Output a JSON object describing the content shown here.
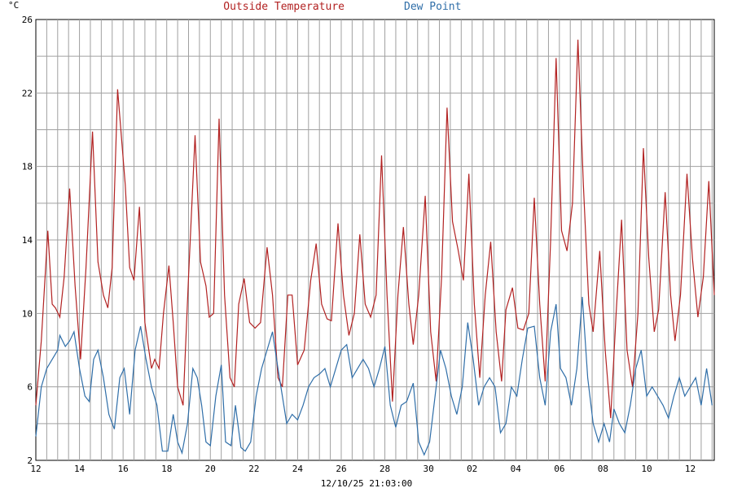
{
  "chart_data": {
    "type": "line",
    "title_parts": [
      {
        "text": "Outside Temperature",
        "color": "#b22222"
      },
      {
        "text": "Dew Point",
        "color": "#2f6ea8"
      }
    ],
    "ylabel": "°C",
    "xlabel": "12/10/25 21:03:00",
    "ylim": [
      2,
      26
    ],
    "yticks": [
      2,
      6,
      10,
      14,
      18,
      22,
      26
    ],
    "xlim": [
      0,
      31.1
    ],
    "xticks": [
      {
        "x": 0,
        "label": "12"
      },
      {
        "x": 2,
        "label": "14"
      },
      {
        "x": 4,
        "label": "16"
      },
      {
        "x": 6,
        "label": "18"
      },
      {
        "x": 8,
        "label": "20"
      },
      {
        "x": 10,
        "label": "22"
      },
      {
        "x": 12,
        "label": "24"
      },
      {
        "x": 14,
        "label": "26"
      },
      {
        "x": 16,
        "label": "28"
      },
      {
        "x": 18,
        "label": "30"
      },
      {
        "x": 20,
        "label": "02"
      },
      {
        "x": 22,
        "label": "04"
      },
      {
        "x": 24,
        "label": "06"
      },
      {
        "x": 26,
        "label": "08"
      },
      {
        "x": 28,
        "label": "10"
      },
      {
        "x": 30,
        "label": "12"
      }
    ],
    "grid": true,
    "series": [
      {
        "name": "Outside Temperature",
        "color": "#b22222",
        "points": [
          [
            0.0,
            5.0
          ],
          [
            0.25,
            8.5
          ],
          [
            0.55,
            14.5
          ],
          [
            0.75,
            10.5
          ],
          [
            0.9,
            10.3
          ],
          [
            1.1,
            9.8
          ],
          [
            1.3,
            12.0
          ],
          [
            1.55,
            16.8
          ],
          [
            1.8,
            11.5
          ],
          [
            2.05,
            7.5
          ],
          [
            2.3,
            12.5
          ],
          [
            2.6,
            19.9
          ],
          [
            2.85,
            12.8
          ],
          [
            3.1,
            11.0
          ],
          [
            3.3,
            10.3
          ],
          [
            3.5,
            12.5
          ],
          [
            3.75,
            22.2
          ],
          [
            4.1,
            17.0
          ],
          [
            4.3,
            12.5
          ],
          [
            4.5,
            11.8
          ],
          [
            4.75,
            15.8
          ],
          [
            5.0,
            9.5
          ],
          [
            5.3,
            7.0
          ],
          [
            5.45,
            7.5
          ],
          [
            5.65,
            7.0
          ],
          [
            5.85,
            10.0
          ],
          [
            6.1,
            12.6
          ],
          [
            6.3,
            9.5
          ],
          [
            6.5,
            6.0
          ],
          [
            6.75,
            5.0
          ],
          [
            7.0,
            12.0
          ],
          [
            7.3,
            19.7
          ],
          [
            7.55,
            12.8
          ],
          [
            7.8,
            11.5
          ],
          [
            7.95,
            9.8
          ],
          [
            8.15,
            10.0
          ],
          [
            8.4,
            20.6
          ],
          [
            8.65,
            11.0
          ],
          [
            8.9,
            6.5
          ],
          [
            9.1,
            6.0
          ],
          [
            9.3,
            10.5
          ],
          [
            9.55,
            11.9
          ],
          [
            9.8,
            9.5
          ],
          [
            10.05,
            9.2
          ],
          [
            10.3,
            9.5
          ],
          [
            10.6,
            13.6
          ],
          [
            10.85,
            11.0
          ],
          [
            11.1,
            6.5
          ],
          [
            11.3,
            6.0
          ],
          [
            11.55,
            11.0
          ],
          [
            11.75,
            11.0
          ],
          [
            12.0,
            7.2
          ],
          [
            12.3,
            8.0
          ],
          [
            12.6,
            11.8
          ],
          [
            12.85,
            13.8
          ],
          [
            13.1,
            10.5
          ],
          [
            13.35,
            9.7
          ],
          [
            13.55,
            9.6
          ],
          [
            13.85,
            14.9
          ],
          [
            14.1,
            11.0
          ],
          [
            14.35,
            8.8
          ],
          [
            14.6,
            10.0
          ],
          [
            14.85,
            14.3
          ],
          [
            15.1,
            10.5
          ],
          [
            15.35,
            9.8
          ],
          [
            15.6,
            11.0
          ],
          [
            15.85,
            18.6
          ],
          [
            16.1,
            11.0
          ],
          [
            16.35,
            5.2
          ],
          [
            16.6,
            11.0
          ],
          [
            16.85,
            14.7
          ],
          [
            17.1,
            10.5
          ],
          [
            17.3,
            8.3
          ],
          [
            17.55,
            11.0
          ],
          [
            17.85,
            16.4
          ],
          [
            18.1,
            9.0
          ],
          [
            18.35,
            6.3
          ],
          [
            18.6,
            12.0
          ],
          [
            18.85,
            21.2
          ],
          [
            19.1,
            15.0
          ],
          [
            19.35,
            13.5
          ],
          [
            19.6,
            11.8
          ],
          [
            19.85,
            17.6
          ],
          [
            20.1,
            10.5
          ],
          [
            20.35,
            6.5
          ],
          [
            20.6,
            11.0
          ],
          [
            20.85,
            13.9
          ],
          [
            21.1,
            9.0
          ],
          [
            21.35,
            6.3
          ],
          [
            21.55,
            10.2
          ],
          [
            21.85,
            11.4
          ],
          [
            22.1,
            9.2
          ],
          [
            22.35,
            9.1
          ],
          [
            22.6,
            10.0
          ],
          [
            22.85,
            16.3
          ],
          [
            23.1,
            10.5
          ],
          [
            23.35,
            6.3
          ],
          [
            23.6,
            14.0
          ],
          [
            23.85,
            23.9
          ],
          [
            24.1,
            14.5
          ],
          [
            24.35,
            13.4
          ],
          [
            24.6,
            16.0
          ],
          [
            24.85,
            24.9
          ],
          [
            25.1,
            17.0
          ],
          [
            25.35,
            10.5
          ],
          [
            25.55,
            9.0
          ],
          [
            25.85,
            13.4
          ],
          [
            26.1,
            8.0
          ],
          [
            26.35,
            4.3
          ],
          [
            26.6,
            10.0
          ],
          [
            26.85,
            15.1
          ],
          [
            27.1,
            8.0
          ],
          [
            27.35,
            6.0
          ],
          [
            27.6,
            10.0
          ],
          [
            27.85,
            19.0
          ],
          [
            28.1,
            13.0
          ],
          [
            28.35,
            9.0
          ],
          [
            28.55,
            10.2
          ],
          [
            28.85,
            16.6
          ],
          [
            29.1,
            11.0
          ],
          [
            29.3,
            8.5
          ],
          [
            29.55,
            11.0
          ],
          [
            29.85,
            17.6
          ],
          [
            30.1,
            13.0
          ],
          [
            30.35,
            9.8
          ],
          [
            30.6,
            12.0
          ],
          [
            30.85,
            17.2
          ],
          [
            31.1,
            11.0
          ],
          [
            31.3,
            6.5
          ],
          [
            31.55,
            12.0
          ],
          [
            31.8,
            15.2
          ],
          [
            32.0,
            11.0
          ],
          [
            32.2,
            9.5
          ]
        ]
      },
      {
        "name": "Dew Point",
        "color": "#2f6ea8",
        "points": [
          [
            0.0,
            3.3
          ],
          [
            0.25,
            6.0
          ],
          [
            0.5,
            7.0
          ],
          [
            0.75,
            7.5
          ],
          [
            1.0,
            8.0
          ],
          [
            1.1,
            8.8
          ],
          [
            1.35,
            8.2
          ],
          [
            1.55,
            8.5
          ],
          [
            1.75,
            9.0
          ],
          [
            2.0,
            7.0
          ],
          [
            2.25,
            5.5
          ],
          [
            2.45,
            5.2
          ],
          [
            2.65,
            7.5
          ],
          [
            2.85,
            8.0
          ],
          [
            3.1,
            6.5
          ],
          [
            3.35,
            4.5
          ],
          [
            3.6,
            3.7
          ],
          [
            3.85,
            6.5
          ],
          [
            4.05,
            7.0
          ],
          [
            4.3,
            4.5
          ],
          [
            4.55,
            8.0
          ],
          [
            4.8,
            9.3
          ],
          [
            5.05,
            7.5
          ],
          [
            5.3,
            6.0
          ],
          [
            5.55,
            5.0
          ],
          [
            5.8,
            2.5
          ],
          [
            6.05,
            2.5
          ],
          [
            6.3,
            4.5
          ],
          [
            6.5,
            3.0
          ],
          [
            6.7,
            2.4
          ],
          [
            6.95,
            4.0
          ],
          [
            7.2,
            7.0
          ],
          [
            7.4,
            6.5
          ],
          [
            7.6,
            5.0
          ],
          [
            7.8,
            3.0
          ],
          [
            8.0,
            2.8
          ],
          [
            8.25,
            5.5
          ],
          [
            8.5,
            7.2
          ],
          [
            8.7,
            3.0
          ],
          [
            8.95,
            2.8
          ],
          [
            9.15,
            5.0
          ],
          [
            9.4,
            2.7
          ],
          [
            9.6,
            2.5
          ],
          [
            9.85,
            3.0
          ],
          [
            10.1,
            5.5
          ],
          [
            10.35,
            7.0
          ],
          [
            10.6,
            8.0
          ],
          [
            10.85,
            9.0
          ],
          [
            11.1,
            7.0
          ],
          [
            11.3,
            5.5
          ],
          [
            11.5,
            4.0
          ],
          [
            11.75,
            4.5
          ],
          [
            12.0,
            4.2
          ],
          [
            12.25,
            5.0
          ],
          [
            12.5,
            6.0
          ],
          [
            12.75,
            6.5
          ],
          [
            13.0,
            6.7
          ],
          [
            13.25,
            7.0
          ],
          [
            13.5,
            6.0
          ],
          [
            13.75,
            7.0
          ],
          [
            14.0,
            8.0
          ],
          [
            14.25,
            8.3
          ],
          [
            14.5,
            6.5
          ],
          [
            14.75,
            7.0
          ],
          [
            15.0,
            7.5
          ],
          [
            15.25,
            7.0
          ],
          [
            15.5,
            6.0
          ],
          [
            15.75,
            7.0
          ],
          [
            16.0,
            8.2
          ],
          [
            16.25,
            5.0
          ],
          [
            16.5,
            3.8
          ],
          [
            16.75,
            5.0
          ],
          [
            17.0,
            5.2
          ],
          [
            17.3,
            6.2
          ],
          [
            17.55,
            3.0
          ],
          [
            17.8,
            2.3
          ],
          [
            18.05,
            3.0
          ],
          [
            18.3,
            5.5
          ],
          [
            18.55,
            8.0
          ],
          [
            18.8,
            7.0
          ],
          [
            19.05,
            5.5
          ],
          [
            19.3,
            4.5
          ],
          [
            19.55,
            6.0
          ],
          [
            19.8,
            9.5
          ],
          [
            20.05,
            7.5
          ],
          [
            20.3,
            5.0
          ],
          [
            20.55,
            6.0
          ],
          [
            20.8,
            6.5
          ],
          [
            21.05,
            6.0
          ],
          [
            21.3,
            3.5
          ],
          [
            21.55,
            4.0
          ],
          [
            21.8,
            6.0
          ],
          [
            22.05,
            5.5
          ],
          [
            22.3,
            7.5
          ],
          [
            22.55,
            9.2
          ],
          [
            22.85,
            9.3
          ],
          [
            23.1,
            6.5
          ],
          [
            23.35,
            5.0
          ],
          [
            23.6,
            9.0
          ],
          [
            23.85,
            10.5
          ],
          [
            24.05,
            7.0
          ],
          [
            24.3,
            6.5
          ],
          [
            24.55,
            5.0
          ],
          [
            24.8,
            7.0
          ],
          [
            25.05,
            10.9
          ],
          [
            25.3,
            6.5
          ],
          [
            25.55,
            4.0
          ],
          [
            25.8,
            3.0
          ],
          [
            26.05,
            4.0
          ],
          [
            26.3,
            3.0
          ],
          [
            26.5,
            4.8
          ],
          [
            26.75,
            4.0
          ],
          [
            27.0,
            3.5
          ],
          [
            27.25,
            5.0
          ],
          [
            27.5,
            7.0
          ],
          [
            27.75,
            8.0
          ],
          [
            28.0,
            5.5
          ],
          [
            28.25,
            6.0
          ],
          [
            28.5,
            5.5
          ],
          [
            28.75,
            5.0
          ],
          [
            29.0,
            4.3
          ],
          [
            29.25,
            5.5
          ],
          [
            29.5,
            6.5
          ],
          [
            29.75,
            5.5
          ],
          [
            30.0,
            6.0
          ],
          [
            30.25,
            6.5
          ],
          [
            30.5,
            5.0
          ],
          [
            30.75,
            7.0
          ],
          [
            31.0,
            5.0
          ],
          [
            31.25,
            4.5
          ],
          [
            31.5,
            6.5
          ],
          [
            31.75,
            6.7
          ],
          [
            32.0,
            7.5
          ]
        ]
      }
    ]
  }
}
